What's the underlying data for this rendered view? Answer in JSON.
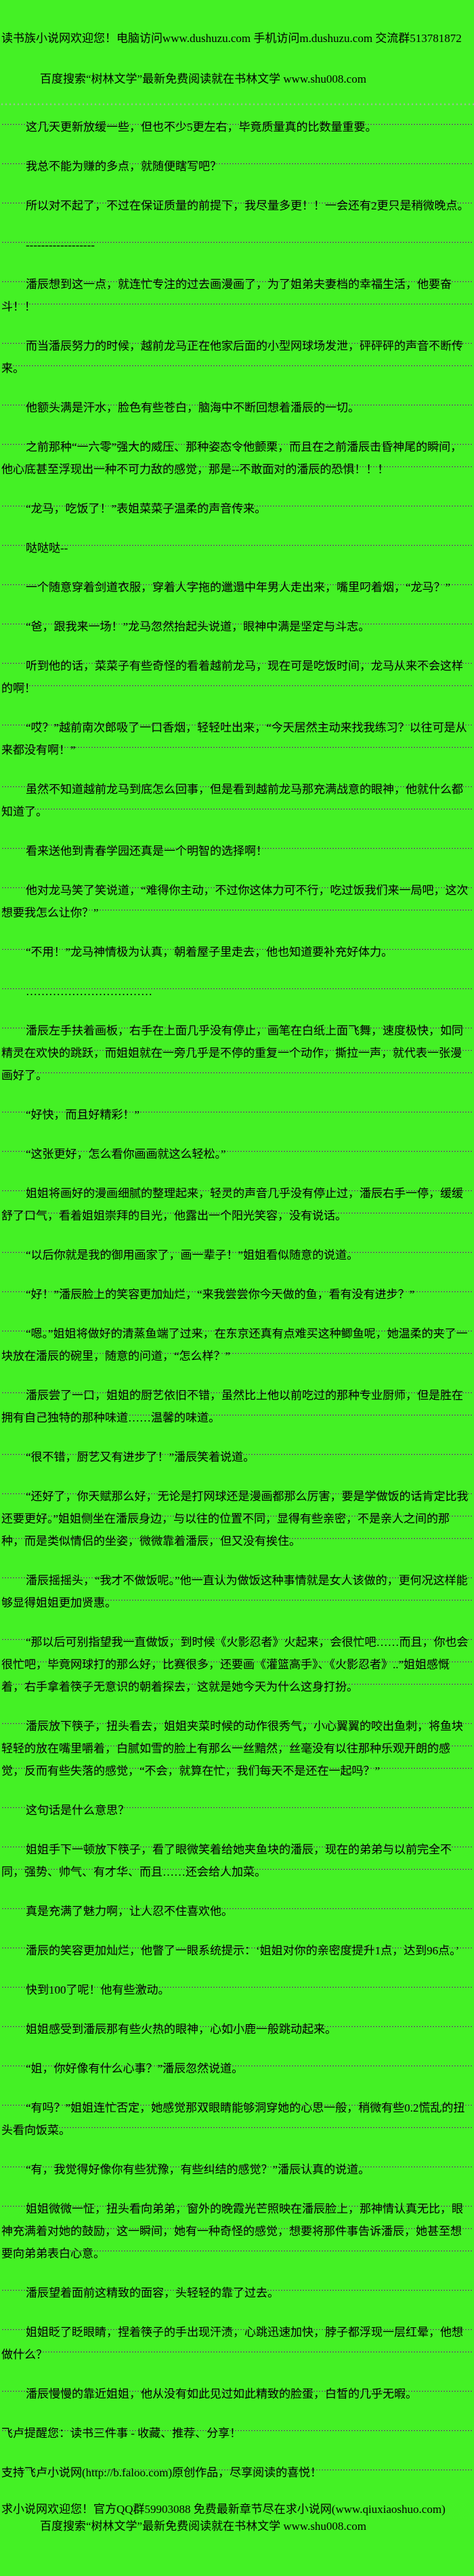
{
  "page": {
    "background_color": "#44f125",
    "text_color": "#000000",
    "underline_color": "#4b554b"
  },
  "header": {
    "welcome_line": "读书族小说网欢迎您！电脑访问www.dushuzu.com 手机访问m.dushuzu.com 交流群513781872",
    "search_line": "百度搜索“树林文学”最新免费阅读就在书林文学 www.shu008.com"
  },
  "body": {
    "paragraphs": [
      {
        "indent": true,
        "text": "这几天更新放缓一些，但也不少5更左右，毕竟质量真的比数量重要。"
      },
      {
        "indent": true,
        "text": "我总不能为赚的多点，就随便瞎写吧？"
      },
      {
        "indent": true,
        "text": "所以对不起了，不过在保证质量的前提下，我尽量多更！！一会还有2更只是稍微晚点。"
      },
      {
        "indent": true,
        "text": "------------------"
      },
      {
        "indent": true,
        "text": "潘辰想到这一点，就连忙专注的过去画漫画了，为了姐弟夫妻档的幸福生活，他要奋斗！！"
      },
      {
        "indent": true,
        "text": "而当潘辰努力的时候，越前龙马正在他家后面的小型网球场发泄，砰砰砰的声音不断传来。"
      },
      {
        "indent": true,
        "text": "他额头满是汗水，脸色有些苍白，脑海中不断回想着潘辰的一切。"
      },
      {
        "indent": true,
        "text": "之前那种“一六零”强大的威压、那种姿态令他颤栗，而且在之前潘辰击昏神尾的瞬间，他心底甚至浮现出一种不可力敌的感觉，那是--不敢面对的潘辰的恐惧！！！"
      },
      {
        "indent": true,
        "text": "“龙马，吃饭了！”表姐菜菜子温柔的声音传来。"
      },
      {
        "indent": true,
        "text": "哒哒哒--"
      },
      {
        "indent": true,
        "text": "一个随意穿着剑道衣服，穿着人字拖的邋遢中年男人走出来，嘴里叼着烟，“龙马？”"
      },
      {
        "indent": true,
        "text": "“爸，跟我来一场！”龙马忽然抬起头说道，眼神中满是坚定与斗志。"
      },
      {
        "indent": true,
        "text": "听到他的话，菜菜子有些奇怪的看着越前龙马，现在可是吃饭时间，龙马从来不会这样的啊！"
      },
      {
        "indent": true,
        "text": "“哎？”越前南次郎吸了一口香烟，轻轻吐出来，“今天居然主动来找我练习？以往可是从来都没有啊！”"
      },
      {
        "indent": true,
        "text": "虽然不知道越前龙马到底怎么回事，但是看到越前龙马那充满战意的眼神，他就什么都知道了。"
      },
      {
        "indent": true,
        "text": "看来送他到青春学园还真是一个明智的选择啊！"
      },
      {
        "indent": true,
        "text": "他对龙马笑了笑说道，“难得你主动，不过你这体力可不行，吃过饭我们来一局吧，这次想要我怎么让你？”"
      },
      {
        "indent": true,
        "text": "“不用！”龙马神情极为认真，朝着屋子里走去，他也知道要补充好体力。"
      },
      {
        "indent": true,
        "text": "……………………………"
      },
      {
        "indent": true,
        "text": "潘辰左手扶着画板，右手在上面几乎没有停止，画笔在白纸上面飞舞，速度极快，如同精灵在欢快的跳跃，而姐姐就在一旁几乎是不停的重复一个动作，撕拉一声，就代表一张漫画好了。"
      },
      {
        "indent": true,
        "text": "“好快，而且好精彩！”"
      },
      {
        "indent": true,
        "text": "“这张更好，怎么看你画画就这么轻松。”"
      },
      {
        "indent": true,
        "text": "姐姐将画好的漫画细腻的整理起来，轻灵的声音几乎没有停止过，潘辰右手一停，缓缓舒了口气，看着姐姐崇拜的目光，他露出一个阳光笑容，没有说话。"
      },
      {
        "indent": true,
        "text": "“以后你就是我的御用画家了，画一辈子！”姐姐看似随意的说道。"
      },
      {
        "indent": true,
        "text": "“好！”潘辰脸上的笑容更加灿烂，“来我尝尝你今天做的鱼，看有没有进步？”"
      },
      {
        "indent": true,
        "text": "“嗯。”姐姐将做好的清蒸鱼端了过来，在东京还真有点难买这种鲫鱼呢，她温柔的夹了一块放在潘辰的碗里，随意的问道，“怎么样？”"
      },
      {
        "indent": true,
        "text": "潘辰尝了一口，姐姐的厨艺依旧不错，虽然比上他以前吃过的那种专业厨师，但是胜在拥有自己独特的那种味道……温馨的味道。"
      },
      {
        "indent": true,
        "text": "“很不错，厨艺又有进步了！”潘辰笑着说道。"
      },
      {
        "indent": true,
        "text": "“还好了，你天赋那么好，无论是打网球还是漫画都那么厉害，要是学做饭的话肯定比我还要更好。”姐姐侧坐在潘辰身边，与以往的位置不同，显得有些亲密，不是亲人之间的那种，而是类似情侣的坐姿，微微靠着潘辰，但又没有挨住。"
      },
      {
        "indent": true,
        "text": "潘辰摇摇头，“我才不做饭呢。”他一直认为做饭这种事情就是女人该做的，更何况这样能够显得姐姐更加贤惠。"
      },
      {
        "indent": true,
        "text": "“那以后可别指望我一直做饭，到时候《火影忍者》火起来，会很忙吧……而且，你也会很忙吧，毕竟网球打的那么好，比赛很多，还要画《灌篮高手》、《火影忍者》..”姐姐感慨着，右手拿着筷子无意识的朝着探去，这就是她今天为什么这身打扮。"
      },
      {
        "indent": true,
        "text": "潘辰放下筷子，扭头看去，姐姐夹菜时候的动作很秀气，小心翼翼的咬出鱼刺，将鱼块轻轻的放在嘴里嚼着，白腻如雪的脸上有那么一丝黯然，丝毫没有以往那种乐观开朗的感觉，反而有些失落的感觉，“不会，就算在忙，我们每天不是还在一起吗？”"
      },
      {
        "indent": true,
        "text": "这句话是什么意思？"
      },
      {
        "indent": true,
        "text": "姐姐手下一顿放下筷子，看了眼微笑着给她夹鱼块的潘辰，现在的弟弟与以前完全不同，强势、帅气、有才华、而且……还会给人加菜。"
      },
      {
        "indent": true,
        "text": "真是充满了魅力啊，让人忍不住喜欢他。"
      },
      {
        "indent": true,
        "text": "潘辰的笑容更加灿烂，他瞥了一眼系统提示：‘姐姐对你的亲密度提升1点，达到96点。’"
      },
      {
        "indent": true,
        "text": "快到100了呢！他有些激动。"
      },
      {
        "indent": true,
        "text": "姐姐感受到潘辰那有些火热的眼神，心如小鹿一般跳动起来。"
      },
      {
        "indent": true,
        "text": "“姐，你好像有什么心事？”潘辰忽然说道。"
      },
      {
        "indent": true,
        "text": "“有吗？”姐姐连忙否定，她感觉那双眼睛能够洞穿她的心思一般，稍微有些0.2慌乱的扭头看向饭菜。"
      },
      {
        "indent": true,
        "text": "“有，我觉得好像你有些犹豫，有些纠结的感觉？”潘辰认真的说道。"
      },
      {
        "indent": true,
        "text": "姐姐微微一怔，扭头看向弟弟，窗外的晚霞光芒照映在潘辰脸上，那神情认真无比，眼神充满着对她的鼓励，这一瞬间，她有一种奇怪的感觉，想要将那件事告诉潘辰，她甚至想要向弟弟表白心意。"
      },
      {
        "indent": true,
        "text": "潘辰望着面前这精致的面容，头轻轻的靠了过去。"
      },
      {
        "indent": true,
        "text": "姐姐眨了眨眼睛，捏着筷子的手出现汗渍，心跳迅速加快，脖子都浮现一层红晕，他想做什么？"
      },
      {
        "indent": true,
        "text": "潘辰慢慢的靠近姐姐，他从没有如此见过如此精致的脸蛋，白皙的几乎无暇。"
      },
      {
        "indent": false,
        "text": "飞卢提醒您：读书三件事 - 收藏、推荐、分享！"
      },
      {
        "indent": false,
        "text": "支持飞卢小说网(http://b.faloo.com)原创作品，尽享阅读的喜悦！"
      }
    ]
  },
  "footer": {
    "qq_line": "求小说网欢迎您！官方QQ群59903088 免费最新章节尽在求小说网(www.qiuxiaoshuo.com)",
    "search_line": "百度搜索“树林文学”最新免费阅读就在书林文学 www.shu008.com"
  }
}
